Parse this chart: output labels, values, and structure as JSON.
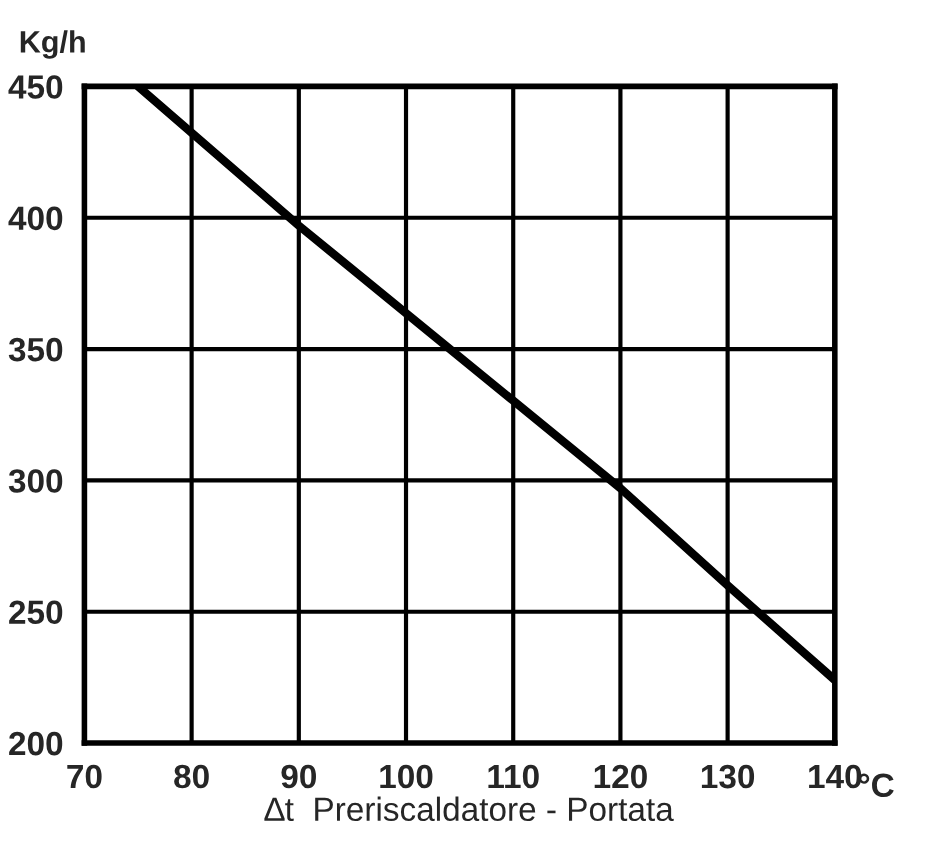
{
  "chart_data": {
    "type": "line",
    "ylabel": "Kg/h",
    "xlabel": "°C",
    "annotations": [
      "∆t  Preriscaldatore - Portata"
    ],
    "x": [
      75,
      90,
      105,
      120,
      130,
      140
    ],
    "series": [
      {
        "color": "#000000",
        "values": [
          450,
          397,
          347,
          297,
          260,
          224
        ]
      }
    ],
    "xlim": [
      70,
      140
    ],
    "xticks": [
      70,
      80,
      90,
      100,
      110,
      120,
      130,
      140
    ],
    "ylim": [
      200,
      450
    ],
    "yticks": [
      200,
      250,
      300,
      350,
      400,
      450
    ],
    "grid": true,
    "marker": "none",
    "line_style": "solid",
    "legend": false
  }
}
